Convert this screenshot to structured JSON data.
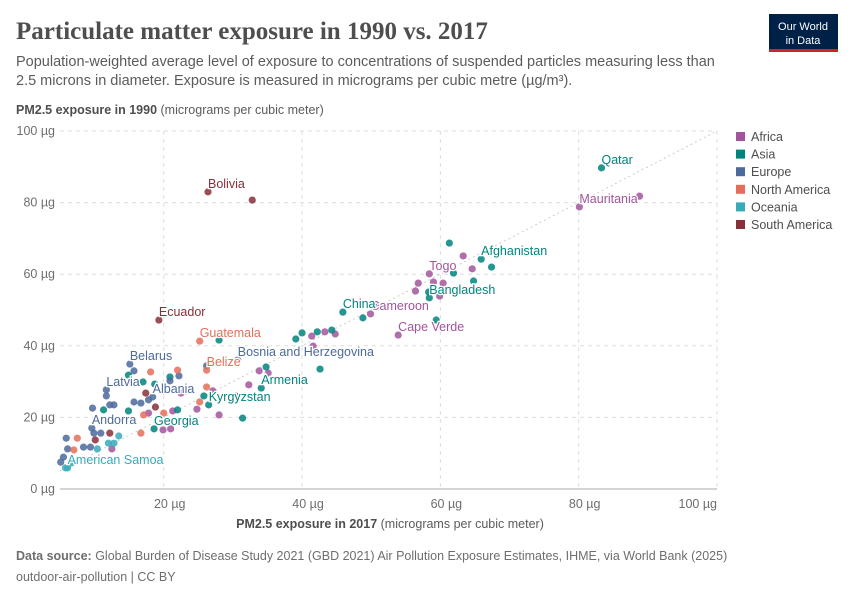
{
  "header": {
    "title": "Particulate matter exposure in 1990 vs. 2017",
    "subtitle_lines": [
      "Population-weighted average level of exposure to concentrations of suspended particles measuring less than",
      "2.5 microns in diameter. Exposure is measured in micrograms per cubic metre (µg/m³)."
    ],
    "logo": {
      "line1": "Our World",
      "line2": "in Data",
      "bg": "#002147",
      "accent": "#ce261e"
    }
  },
  "footer": {
    "source_label": "Data source:",
    "source_text": " Global Burden of Disease Study 2021 (GBD 2021) Air Pollution Exposure Estimates, IHME, via World Bank (2025)",
    "slug_license": "outdoor-air-pollution | CC BY"
  },
  "chart_data": {
    "type": "scatter",
    "title": "Particulate matter exposure in 1990 vs. 2017",
    "xlabel_bold": "PM2.5 exposure in 2017",
    "xlabel_unit": " (micrograms per cubic meter)",
    "ylabel_bold": "PM2.5 exposure in 1990",
    "ylabel_unit": " (micrograms per cubic meter)",
    "xlim": [
      5,
      100
    ],
    "ylim": [
      0,
      100
    ],
    "x_ticks": [
      {
        "v": 20,
        "label": "20 µg"
      },
      {
        "v": 40,
        "label": "40 µg"
      },
      {
        "v": 60,
        "label": "60 µg"
      },
      {
        "v": 80,
        "label": "80 µg"
      },
      {
        "v": 100,
        "label": "100 µg"
      }
    ],
    "y_ticks": [
      {
        "v": 0,
        "label": "0 µg"
      },
      {
        "v": 20,
        "label": "20 µg"
      },
      {
        "v": 40,
        "label": "40 µg"
      },
      {
        "v": 60,
        "label": "60 µg"
      },
      {
        "v": 80,
        "label": "80 µg"
      },
      {
        "v": 100,
        "label": "100 µg"
      }
    ],
    "grid": true,
    "reference_line": "y = x (dotted)",
    "legend_position": "right",
    "legend": [
      {
        "name": "Africa",
        "color": "#a2559c"
      },
      {
        "name": "Asia",
        "color": "#00847e"
      },
      {
        "name": "Europe",
        "color": "#4c6a9c"
      },
      {
        "name": "North America",
        "color": "#e56e5a"
      },
      {
        "name": "Oceania",
        "color": "#38aaba"
      },
      {
        "name": "South America",
        "color": "#883039"
      }
    ],
    "points": [
      [
        80.1,
        78.8,
        "Africa",
        "Mauritania"
      ],
      [
        88.8,
        81.8,
        "Africa"
      ],
      [
        63.3,
        65.1,
        "Africa"
      ],
      [
        64.6,
        61.5,
        "Africa"
      ],
      [
        58.4,
        60.1,
        "Africa",
        "Togo"
      ],
      [
        56.8,
        57.5,
        "Africa"
      ],
      [
        56.4,
        55.3,
        "Africa"
      ],
      [
        59.0,
        57.8,
        "Africa"
      ],
      [
        60.4,
        57.5,
        "Africa"
      ],
      [
        59.9,
        53.9,
        "Africa"
      ],
      [
        49.9,
        48.9,
        "Africa",
        "Cameroon"
      ],
      [
        50.9,
        50.8,
        "Africa"
      ],
      [
        44.8,
        43.3,
        "Africa"
      ],
      [
        43.3,
        43.9,
        "Africa"
      ],
      [
        41.4,
        42.7,
        "Africa"
      ],
      [
        53.9,
        43.0,
        "Africa",
        "Cape Verde"
      ],
      [
        41.6,
        39.9,
        "Africa"
      ],
      [
        33.8,
        33.0,
        "Africa"
      ],
      [
        35.1,
        32.4,
        "Africa"
      ],
      [
        32.3,
        29.1,
        "Africa"
      ],
      [
        30.4,
        26.0,
        "Africa"
      ],
      [
        27.1,
        27.4,
        "Africa"
      ],
      [
        28.0,
        20.7,
        "Africa"
      ],
      [
        24.8,
        22.3,
        "Africa"
      ],
      [
        21.3,
        21.8,
        "Africa"
      ],
      [
        19.9,
        16.5,
        "Africa"
      ],
      [
        21.0,
        16.8,
        "Africa"
      ],
      [
        22.5,
        26.8,
        "Africa"
      ],
      [
        17.8,
        21.2,
        "Africa"
      ],
      [
        12.5,
        11.2,
        "Africa"
      ],
      [
        83.3,
        89.7,
        "Asia",
        "Qatar"
      ],
      [
        61.3,
        68.7,
        "Asia"
      ],
      [
        65.9,
        64.2,
        "Asia",
        "Afghanistan"
      ],
      [
        67.4,
        62.0,
        "Asia"
      ],
      [
        61.9,
        60.3,
        "Asia"
      ],
      [
        64.8,
        58.1,
        "Asia"
      ],
      [
        58.3,
        55.0,
        "Asia"
      ],
      [
        58.4,
        53.4,
        "Asia",
        "Bangladesh"
      ],
      [
        45.9,
        49.4,
        "Asia",
        "China"
      ],
      [
        48.8,
        47.8,
        "Asia"
      ],
      [
        44.3,
        44.4,
        "Asia"
      ],
      [
        42.2,
        43.9,
        "Asia"
      ],
      [
        40.0,
        43.6,
        "Asia"
      ],
      [
        39.1,
        41.9,
        "Asia"
      ],
      [
        59.4,
        47.2,
        "Asia"
      ],
      [
        42.6,
        33.5,
        "Asia"
      ],
      [
        34.1,
        28.2,
        "Asia",
        "Armenia"
      ],
      [
        34.8,
        34.1,
        "Asia"
      ],
      [
        31.4,
        19.8,
        "Asia"
      ],
      [
        26.5,
        23.5,
        "Asia",
        "Kyrgyzstan"
      ],
      [
        25.8,
        26.0,
        "Asia"
      ],
      [
        22.0,
        22.1,
        "Asia"
      ],
      [
        18.6,
        16.8,
        "Asia",
        "Georgia"
      ],
      [
        17.0,
        29.9,
        "Asia"
      ],
      [
        18.7,
        29.3,
        "Asia"
      ],
      [
        20.9,
        31.3,
        "Asia"
      ],
      [
        14.9,
        31.8,
        "Asia"
      ],
      [
        11.3,
        22.1,
        "Asia"
      ],
      [
        14.9,
        21.8,
        "Asia"
      ],
      [
        28.0,
        41.6,
        "Asia"
      ],
      [
        30.7,
        36.0,
        "Europe",
        "Bosnia and Herzegovina"
      ],
      [
        26.2,
        34.4,
        "Europe"
      ],
      [
        20.0,
        27.4,
        "Europe"
      ],
      [
        17.8,
        24.9,
        "Europe"
      ],
      [
        16.7,
        24.0,
        "Europe"
      ],
      [
        15.7,
        24.3,
        "Europe"
      ],
      [
        15.1,
        34.9,
        "Europe",
        "Belarus"
      ],
      [
        15.7,
        33.0,
        "Europe"
      ],
      [
        20.9,
        30.2,
        "Europe"
      ],
      [
        22.2,
        31.6,
        "Europe"
      ],
      [
        11.7,
        27.7,
        "Europe",
        "Latvia"
      ],
      [
        11.7,
        26.0,
        "Europe"
      ],
      [
        9.7,
        22.6,
        "Europe"
      ],
      [
        12.2,
        23.5,
        "Europe"
      ],
      [
        12.8,
        23.5,
        "Europe"
      ],
      [
        9.6,
        17.0,
        "Europe",
        "Andorra"
      ],
      [
        9.9,
        15.6,
        "Europe"
      ],
      [
        10.9,
        15.6,
        "Europe"
      ],
      [
        5.9,
        14.2,
        "Europe"
      ],
      [
        6.1,
        11.2,
        "Europe"
      ],
      [
        8.4,
        11.7,
        "Europe"
      ],
      [
        5.5,
        8.9,
        "Europe"
      ],
      [
        5.1,
        7.5,
        "Europe"
      ],
      [
        9.4,
        11.7,
        "Europe"
      ],
      [
        18.4,
        25.7,
        "Europe",
        "Albania"
      ],
      [
        25.2,
        41.3,
        "North America",
        "Guatemala"
      ],
      [
        26.2,
        33.2,
        "North America",
        "Belize"
      ],
      [
        26.2,
        28.5,
        "North America"
      ],
      [
        25.2,
        24.3,
        "North America"
      ],
      [
        22.0,
        33.2,
        "North America"
      ],
      [
        20.0,
        21.2,
        "North America"
      ],
      [
        17.1,
        20.7,
        "North America"
      ],
      [
        16.7,
        15.6,
        "North America"
      ],
      [
        7.5,
        14.2,
        "North America"
      ],
      [
        7.0,
        10.9,
        "North America"
      ],
      [
        18.1,
        32.7,
        "North America"
      ],
      [
        6.1,
        5.9,
        "Oceania",
        "American Samoa"
      ],
      [
        13.5,
        14.8,
        "Oceania"
      ],
      [
        12.8,
        12.8,
        "Oceania"
      ],
      [
        12.0,
        12.8,
        "Oceania"
      ],
      [
        10.4,
        11.2,
        "Oceania"
      ],
      [
        6.7,
        7.3,
        "Oceania"
      ],
      [
        5.8,
        5.9,
        "Oceania"
      ],
      [
        26.4,
        83.0,
        "South America",
        "Bolivia"
      ],
      [
        32.8,
        80.7,
        "South America"
      ],
      [
        19.3,
        47.2,
        "South America",
        "Ecuador"
      ],
      [
        17.4,
        26.8,
        "South America"
      ],
      [
        18.8,
        22.9,
        "South America"
      ],
      [
        23.2,
        27.4,
        "South America"
      ],
      [
        10.1,
        13.7,
        "South America"
      ],
      [
        12.2,
        15.6,
        "South America"
      ]
    ]
  }
}
